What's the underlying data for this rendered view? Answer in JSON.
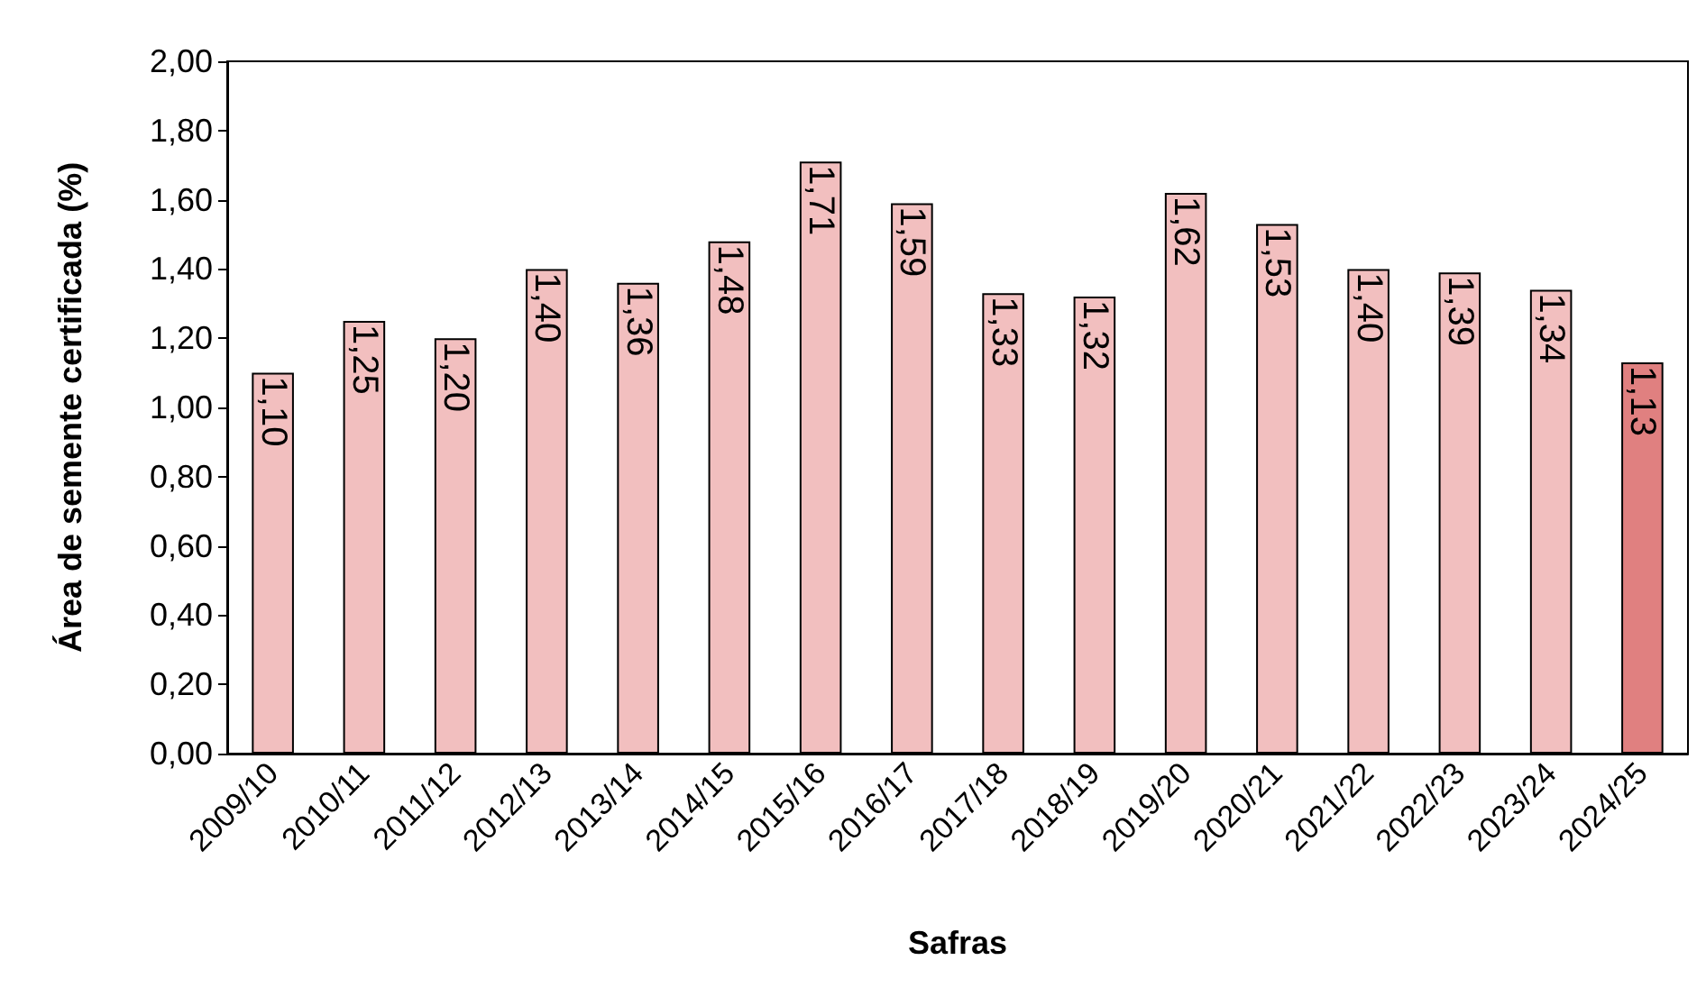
{
  "chart_data": {
    "type": "bar",
    "xlabel": "Safras",
    "ylabel": "Área de semente certificada (%)",
    "categories": [
      "2009/10",
      "2010/11",
      "2011/12",
      "2012/13",
      "2013/14",
      "2014/15",
      "2015/16",
      "2016/17",
      "2017/18",
      "2018/19",
      "2019/20",
      "2020/21",
      "2021/22",
      "2022/23",
      "2023/24",
      "2024/25"
    ],
    "values": [
      1.1,
      1.25,
      1.2,
      1.4,
      1.36,
      1.48,
      1.71,
      1.59,
      1.33,
      1.32,
      1.62,
      1.53,
      1.4,
      1.39,
      1.34,
      1.13
    ],
    "value_labels": [
      "1,10",
      "1,25",
      "1,20",
      "1,40",
      "1,36",
      "1,48",
      "1,71",
      "1,59",
      "1,33",
      "1,32",
      "1,62",
      "1,53",
      "1,40",
      "1,39",
      "1,34",
      "1,13"
    ],
    "colors": [
      "#f2bfbf",
      "#f2bfbf",
      "#f2bfbf",
      "#f2bfbf",
      "#f2bfbf",
      "#f2bfbf",
      "#f2bfbf",
      "#f2bfbf",
      "#f2bfbf",
      "#f2bfbf",
      "#f2bfbf",
      "#f2bfbf",
      "#f2bfbf",
      "#f2bfbf",
      "#f2bfbf",
      "#e08080"
    ],
    "ylim": [
      0,
      2
    ],
    "yticks": [
      {
        "value": 0,
        "label": "0,00"
      },
      {
        "value": 0.2,
        "label": "0,20"
      },
      {
        "value": 0.4,
        "label": "0,40"
      },
      {
        "value": 0.6,
        "label": "0,60"
      },
      {
        "value": 0.8,
        "label": "0,80"
      },
      {
        "value": 1,
        "label": "1,00"
      },
      {
        "value": 1.2,
        "label": "1,20"
      },
      {
        "value": 1.4,
        "label": "1,40"
      },
      {
        "value": 1.6,
        "label": "1,60"
      },
      {
        "value": 1.8,
        "label": "1,80"
      },
      {
        "value": 2,
        "label": "2,00"
      }
    ],
    "grid": false
  }
}
